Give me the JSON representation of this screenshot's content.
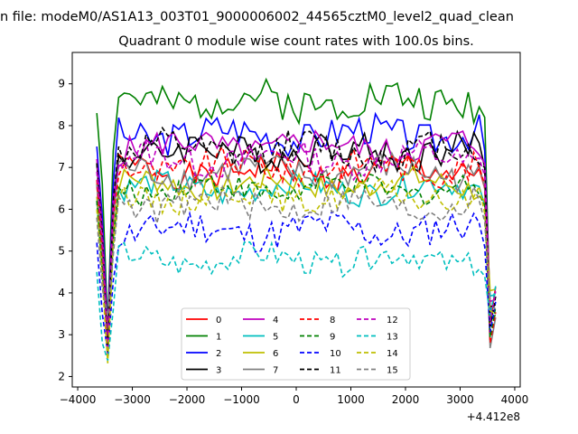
{
  "chart_data": {
    "type": "line",
    "suptitle": "n file: modeM0/AS1A13_003T01_9000006002_44565cztM0_level2_quad_clean",
    "title": "Quadrant 0 module wise count rates with 100.0s bins.",
    "xlabel": "",
    "ylabel": "",
    "x_offset_label": "+4.412e8",
    "xlim": [
      -4100,
      4100
    ],
    "ylim": [
      1.75,
      9.75
    ],
    "xticks": [
      -4000,
      -3000,
      -2000,
      -1000,
      0,
      1000,
      2000,
      3000,
      4000
    ],
    "xtick_labels": [
      "−4000",
      "−3000",
      "−2000",
      "−1000",
      "0",
      "1000",
      "2000",
      "3000",
      "4000"
    ],
    "yticks": [
      2,
      3,
      4,
      5,
      6,
      7,
      8,
      9
    ],
    "ytick_labels": [
      "2",
      "3",
      "4",
      "5",
      "6",
      "7",
      "8",
      "9"
    ],
    "grid": false,
    "legend_position": "lower-center",
    "legend_columns": 4,
    "x_start": -3650,
    "x_step": 100,
    "series": [
      {
        "name": "0",
        "color": "#ff0000",
        "dash": "solid",
        "base": 6.9,
        "amp": 0.35
      },
      {
        "name": "1",
        "color": "#008000",
        "dash": "solid",
        "base": 8.6,
        "amp": 0.45
      },
      {
        "name": "2",
        "color": "#0000ff",
        "dash": "solid",
        "base": 7.8,
        "amp": 0.4
      },
      {
        "name": "3",
        "color": "#000000",
        "dash": "solid",
        "base": 7.4,
        "amp": 0.4
      },
      {
        "name": "4",
        "color": "#bf00bf",
        "dash": "solid",
        "base": 7.5,
        "amp": 0.35
      },
      {
        "name": "5",
        "color": "#00bfbf",
        "dash": "solid",
        "base": 6.5,
        "amp": 0.3
      },
      {
        "name": "6",
        "color": "#bfbf00",
        "dash": "solid",
        "base": 6.6,
        "amp": 0.3
      },
      {
        "name": "7",
        "color": "#808080",
        "dash": "solid",
        "base": 6.9,
        "amp": 0.35
      },
      {
        "name": "8",
        "color": "#ff0000",
        "dash": "dashed",
        "base": 7.0,
        "amp": 0.35
      },
      {
        "name": "9",
        "color": "#008000",
        "dash": "dashed",
        "base": 6.5,
        "amp": 0.3
      },
      {
        "name": "10",
        "color": "#0000ff",
        "dash": "dashed",
        "base": 5.5,
        "amp": 0.4
      },
      {
        "name": "11",
        "color": "#000000",
        "dash": "dashed",
        "base": 7.4,
        "amp": 0.4
      },
      {
        "name": "12",
        "color": "#bf00bf",
        "dash": "dashed",
        "base": 7.2,
        "amp": 0.35
      },
      {
        "name": "13",
        "color": "#00bfbf",
        "dash": "dashed",
        "base": 4.8,
        "amp": 0.3
      },
      {
        "name": "14",
        "color": "#bfbf00",
        "dash": "dashed",
        "base": 6.3,
        "amp": 0.3
      },
      {
        "name": "15",
        "color": "#808080",
        "dash": "dashed",
        "base": 6.1,
        "amp": 0.35
      }
    ]
  }
}
